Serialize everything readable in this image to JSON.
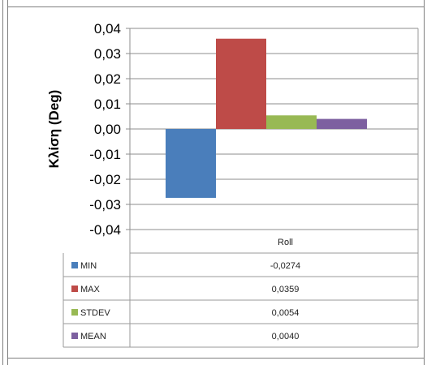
{
  "chart_data": {
    "type": "bar",
    "categories": [
      "Roll"
    ],
    "series": [
      {
        "name": "MIN",
        "values": [
          -0.0274
        ],
        "color": "#4a7ebb"
      },
      {
        "name": "MAX",
        "values": [
          0.0359
        ],
        "color": "#be4b48"
      },
      {
        "name": "STDEV",
        "values": [
          0.0054
        ],
        "color": "#98b954"
      },
      {
        "name": "MEAN",
        "values": [
          0.004
        ],
        "color": "#7d60a0"
      }
    ],
    "value_labels": [
      "-0,0274",
      "0,0359",
      "0,0054",
      "0,0040"
    ],
    "ylabel": "Κλίση (Deg)",
    "ylim": [
      -0.04,
      0.04
    ],
    "yticks": [
      0.04,
      0.03,
      0.02,
      0.01,
      0.0,
      -0.01,
      -0.02,
      -0.03,
      -0.04
    ],
    "ytick_labels": [
      "0,04",
      "0,03",
      "0,02",
      "0,01",
      "0,00",
      "-0,01",
      "-0,02",
      "-0,03",
      "-0,04"
    ],
    "grid": true,
    "legend": "data-table"
  }
}
